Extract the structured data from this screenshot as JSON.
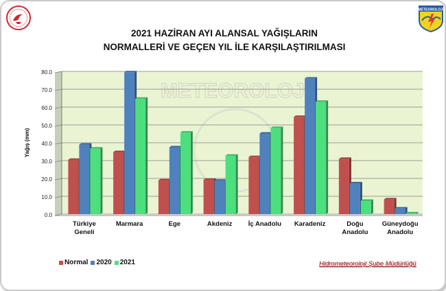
{
  "chart_data": {
    "type": "bar",
    "title_lines": [
      "2021 HAZİRAN AYI ALANSAL YAĞIŞLARIN",
      "NORMALLERİ VE GEÇEN YIL İLE KARŞILAŞTIRILMASI"
    ],
    "xlabel": "",
    "ylabel": "Yağış (mm)",
    "ylim": [
      0,
      80
    ],
    "yticks": [
      "0.0",
      "10.0",
      "20.0",
      "30.0",
      "40.0",
      "50.0",
      "60.0",
      "70.0",
      "80.0"
    ],
    "grid": true,
    "legend_position": "bottom-left",
    "categories": [
      [
        "Türkiye",
        "Geneli"
      ],
      [
        "Marmara"
      ],
      [
        "Ege"
      ],
      [
        "Akdeniz"
      ],
      [
        "İç Anadolu"
      ],
      [
        "Karadeniz"
      ],
      [
        "Doğu",
        "Anadolu"
      ],
      [
        "Güneydoğu",
        "Anadolu"
      ]
    ],
    "series": [
      {
        "name": "Normal",
        "color": "#c0504d",
        "values": [
          30.5,
          34.8,
          19.0,
          19.3,
          32.0,
          54.5,
          31.0,
          8.3
        ]
      },
      {
        "name": "2020",
        "color": "#4f81bd",
        "values": [
          39.0,
          79.5,
          37.5,
          18.8,
          45.2,
          76.0,
          17.3,
          3.2
        ]
      },
      {
        "name": "2021",
        "color": "#4ddf7e",
        "values": [
          36.8,
          64.7,
          45.7,
          32.8,
          48.3,
          63.0,
          7.5,
          0.5
        ]
      }
    ]
  },
  "footer": "Hidrometeoroloji Şube Müdürlüğü",
  "logo_right_text": "METEOROLOJİ",
  "watermark": "METEOROLOJİ",
  "colors": {
    "plot_bg": "#eaf4d3",
    "grid": "#7f7f7f",
    "wall": "#c8cfb8"
  },
  "icons": {
    "left_logo": "ministry-emblem-icon",
    "right_logo": "meteorology-badge-icon"
  }
}
